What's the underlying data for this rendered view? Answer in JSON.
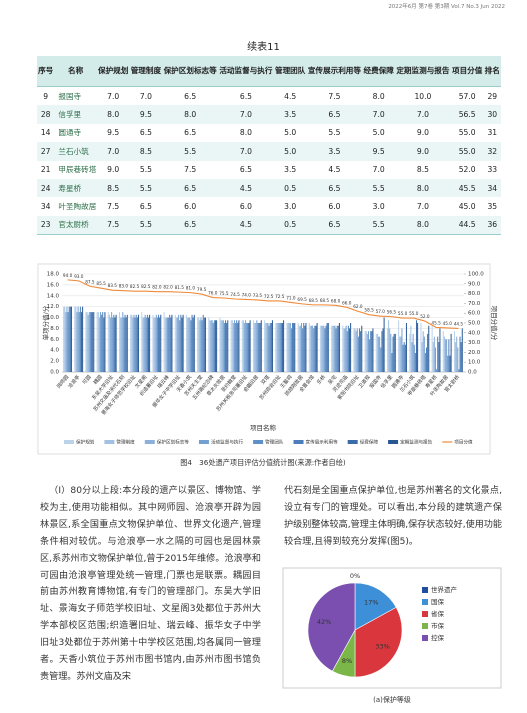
{
  "header": "2022年6月 第7卷 第3期 Vol.7 No.3 Jun 2022",
  "table": {
    "caption": "续表11",
    "columns": [
      "序号",
      "名称",
      "保护规划",
      "管理制度",
      "保护区划标志等",
      "活动监督与执行",
      "管理团队",
      "宣传展示利用等",
      "经费保障",
      "定期监测与报告",
      "项目分值",
      "排名"
    ],
    "rows": [
      [
        "9",
        "报国寺",
        "7.0",
        "7.0",
        "6.5",
        "6.5",
        "4.5",
        "7.5",
        "8.0",
        "10.0",
        "57.0",
        "29"
      ],
      [
        "28",
        "信孚里",
        "8.0",
        "9.5",
        "8.0",
        "7.0",
        "3.5",
        "6.5",
        "7.0",
        "7.0",
        "56.5",
        "30"
      ],
      [
        "14",
        "圆通寺",
        "9.5",
        "6.5",
        "6.5",
        "8.0",
        "5.0",
        "5.5",
        "5.0",
        "9.0",
        "55.0",
        "31"
      ],
      [
        "27",
        "兰石小筑",
        "7.0",
        "8.5",
        "5.5",
        "7.0",
        "5.0",
        "3.5",
        "9.5",
        "9.0",
        "55.0",
        "32"
      ],
      [
        "21",
        "甲辰巷砖塔",
        "9.0",
        "5.5",
        "7.5",
        "6.5",
        "3.5",
        "4.5",
        "7.0",
        "8.5",
        "52.0",
        "33"
      ],
      [
        "24",
        "寿星桥",
        "8.5",
        "5.5",
        "6.5",
        "4.5",
        "0.5",
        "6.5",
        "5.5",
        "8.0",
        "45.5",
        "34"
      ],
      [
        "34",
        "叶圣陶故居",
        "7.5",
        "6.5",
        "6.0",
        "6.0",
        "3.0",
        "6.0",
        "3.0",
        "7.0",
        "45.0",
        "35"
      ],
      [
        "23",
        "官太尉桥",
        "7.5",
        "5.5",
        "6.5",
        "4.5",
        "0.5",
        "6.5",
        "5.5",
        "8.0",
        "44.5",
        "36"
      ]
    ]
  },
  "chart_data": [
    {
      "type": "bar",
      "caption": "图4　36处遗产项目评估分值统计图(来源:作者自绘)",
      "x_label": "项目名称",
      "y_label": "单项分值/分",
      "y2_label": "项目分值/分",
      "categories": [
        "网师园",
        "沧浪亭",
        "可园",
        "耦园",
        "东吴大学旧址",
        "苏州文庙及宋代石刻",
        "景海女子师范学校旧址",
        "文星阁",
        "织造署旧址",
        "瑞云峰",
        "振华女子中学旧址",
        "天香小筑",
        "苏州天主堂",
        "五卅路纪念碑",
        "章太炎故居",
        "圣约翰堂",
        "苏州关税务司署旧址",
        "俞樾旧居",
        "双塔",
        "苏州商会旧址",
        "王鏊祠",
        "顾颉刚故居",
        "全晋会馆",
        "乐桥",
        "吴宅",
        "灵迹司庙",
        "紫阳书院旧址",
        "卫道观",
        "报国寺",
        "信孚里",
        "圆通寺",
        "兰石小筑",
        "甲辰巷砖塔",
        "寿星桥",
        "叶圣陶故居",
        "官太尉桥"
      ],
      "ylim": [
        0,
        18
      ],
      "yticks": [
        {
          "value": 0,
          "label": "0.0"
        },
        {
          "value": 2,
          "label": "2.0"
        },
        {
          "value": 4,
          "label": "4.0"
        },
        {
          "value": 6,
          "label": "6.0"
        },
        {
          "value": 8,
          "label": "8.0"
        },
        {
          "value": 10,
          "label": "10.0"
        },
        {
          "value": 12,
          "label": "12.0"
        },
        {
          "value": 14,
          "label": "14.0"
        },
        {
          "value": 16,
          "label": "16.0"
        },
        {
          "value": 18,
          "label": "18.0"
        }
      ],
      "y2lim": [
        0,
        100
      ],
      "y2ticks": [
        {
          "value": 0,
          "label": "0.0"
        },
        {
          "value": 10,
          "label": "10.0"
        },
        {
          "value": 20,
          "label": "20.0"
        },
        {
          "value": 30,
          "label": "30.0"
        },
        {
          "value": 40,
          "label": "40.0"
        },
        {
          "value": 50,
          "label": "50.0"
        },
        {
          "value": 60,
          "label": "60.0"
        },
        {
          "value": 70,
          "label": "70.0"
        },
        {
          "value": 80,
          "label": "80.0"
        },
        {
          "value": 90,
          "label": "90.0"
        },
        {
          "value": 100,
          "label": "100.0"
        }
      ],
      "grid": true,
      "series": [
        {
          "name": "保护规划",
          "color": "#bcd2ea",
          "values": [
            12,
            12,
            11,
            11,
            11,
            11,
            10.5,
            11,
            10.5,
            11,
            10.5,
            10.5,
            10,
            10,
            10,
            9.5,
            9.5,
            9.5,
            9.5,
            9,
            9,
            9,
            9,
            8.5,
            8.5,
            8.5,
            8,
            7.5,
            7,
            8,
            9.5,
            7,
            9,
            8.5,
            7.5,
            7.5
          ]
        },
        {
          "name": "管理制度",
          "color": "#a4c1e3",
          "values": [
            12,
            12,
            11,
            11,
            10.5,
            10,
            10.5,
            10,
            10,
            10,
            10,
            10,
            10,
            9.5,
            9.5,
            9.5,
            9.5,
            9,
            9,
            9,
            9,
            8.5,
            8.5,
            8.5,
            8.5,
            8,
            8,
            7.5,
            7,
            9.5,
            6.5,
            8.5,
            5.5,
            5.5,
            6.5,
            5.5
          ]
        },
        {
          "name": "保护区划标志等",
          "color": "#8cb0da",
          "values": [
            11,
            11,
            10.5,
            10,
            10,
            10,
            10,
            10,
            10,
            10,
            10,
            10,
            9.5,
            9.5,
            9.5,
            9,
            9,
            9,
            9,
            9,
            9,
            8.5,
            8.5,
            8.5,
            8.5,
            8,
            7.5,
            7,
            6.5,
            8,
            6.5,
            5.5,
            7.5,
            6.5,
            6,
            6.5
          ]
        },
        {
          "name": "活动监督与执行",
          "color": "#74a0d1",
          "values": [
            12,
            12,
            11,
            11,
            11,
            11,
            10.5,
            10.5,
            10.5,
            10,
            10.5,
            10,
            10,
            9.5,
            9.5,
            9.5,
            9.5,
            9.5,
            9,
            9,
            9,
            9,
            8.5,
            8.5,
            8.5,
            8.5,
            8,
            7.5,
            6.5,
            7,
            8,
            7,
            6.5,
            4.5,
            6,
            4.5
          ]
        },
        {
          "name": "管理团队",
          "color": "#5e8fc7",
          "values": [
            11,
            11,
            11,
            10.5,
            10,
            10,
            10,
            10,
            10,
            10,
            9.5,
            9.5,
            9.5,
            9,
            9,
            9,
            9,
            9,
            8.5,
            9,
            8,
            8,
            8,
            8,
            8,
            7.5,
            6.5,
            6,
            4.5,
            3.5,
            5,
            5,
            3.5,
            0.5,
            3,
            0.5
          ]
        },
        {
          "name": "宣传展示利用等",
          "color": "#4b7eba",
          "values": [
            12,
            12,
            11,
            11,
            10.5,
            10.5,
            10.5,
            10.5,
            10.5,
            10.5,
            10.5,
            10.5,
            10.5,
            9.5,
            9.5,
            9.5,
            9,
            9,
            9,
            9,
            9,
            9,
            8.5,
            8.5,
            8.5,
            8.5,
            8,
            7.5,
            7.5,
            6.5,
            5.5,
            3.5,
            4.5,
            6.5,
            6,
            6.5
          ]
        },
        {
          "name": "经费保障",
          "color": "#3a6caa",
          "values": [
            12,
            11,
            11,
            10,
            10,
            10,
            10,
            10,
            10,
            10,
            10,
            10,
            10,
            9.5,
            9,
            9,
            9,
            9,
            9,
            9,
            9,
            8.5,
            8.5,
            9,
            8.5,
            8,
            7.5,
            7.5,
            8,
            7,
            5,
            9.5,
            7,
            5.5,
            3,
            5.5
          ]
        },
        {
          "name": "定期监测与报告",
          "color": "#285893",
          "values": [
            12,
            12,
            11,
            11,
            10.5,
            10.5,
            10.5,
            10.5,
            10.5,
            10.5,
            10.5,
            10.5,
            10,
            9.5,
            9.5,
            9.5,
            9.5,
            9.5,
            9.5,
            9.5,
            9,
            9,
            9,
            9,
            9,
            9,
            8.5,
            8,
            10,
            7,
            9,
            9,
            8.5,
            8,
            7,
            8
          ]
        },
        {
          "name": "项目分值",
          "color": "#ef8a3a",
          "type": "line",
          "axis": "y2",
          "values": [
            94,
            93,
            87.5,
            85.5,
            83.5,
            83,
            82.5,
            82.5,
            82,
            82,
            81.5,
            81,
            79.5,
            76,
            75.5,
            74.5,
            74,
            73.5,
            72.5,
            72.5,
            71,
            69.5,
            68.5,
            68.5,
            68,
            66,
            62,
            58.5,
            57,
            56.5,
            55,
            55,
            52,
            45.5,
            45,
            44.5
          ],
          "value_labels": [
            "94.0",
            "93.0",
            "87.5",
            "85.5",
            "83.5",
            "83.0",
            "82.5",
            "82.5",
            "82.0",
            "82.0",
            "81.5",
            "81.0",
            "79.5",
            "76.0",
            "75.5",
            "74.5",
            "74.0",
            "73.5",
            "72.5",
            "72.5",
            "71.0",
            "69.5",
            "68.5",
            "68.5",
            "68.0",
            "66.0",
            "62.0",
            "58.5",
            "57.0",
            "56.5",
            "55.0",
            "55.0",
            "52.0",
            "45.5",
            "45.0",
            "44.5"
          ]
        }
      ]
    },
    {
      "type": "pie",
      "caption": "(a)保护等级",
      "categories": [
        "世界遗产",
        "国保",
        "省保",
        "市保",
        "控保"
      ],
      "values": [
        0,
        17,
        33,
        8,
        42
      ],
      "value_labels": [
        "0%",
        "17%",
        "33%",
        "8%",
        "42%"
      ],
      "colors": [
        "#1f4e9c",
        "#3d8fd8",
        "#d9363e",
        "#7ab648",
        "#7b4fb0"
      ]
    }
  ],
  "body_text": [
    "（Ⅰ）80分以上段:本分段的遗产以景区、博物馆、学校为主,使用功能相似。其中网师园、沧浪亭开辟为园林景区,系全国重点文物保护单位、世界文化遗产,管理条件相对较优。与沧浪亭一水之隔的可园也是园林景区,系苏州市文物保护单位,曾于2015年维修。沧浪亭和可园由沧浪亭管理处统一管理,门票也是联票。耦园目前由苏州教育博物馆,有专门的管理部门。东吴大学旧址、景海女子师范学校旧址、文星阁3处都位于苏州大学本部校区范围;织造署旧址、瑞云峰、振华女子中学旧址3处都位于苏州第十中学校区范围,均各属同一管理者。天香小筑位于苏州市图书馆内,由苏州市图书馆负责管理。苏州文庙及宋",
    "代石刻是全国重点保护单位,也是苏州著名的文化景点,设立有专门的管理处。可以看出,本分段的建筑遗产保护级别整体较高,管理主体明确,保存状态较好,使用功能较合理,且得到较充分发挥(图5)。"
  ]
}
